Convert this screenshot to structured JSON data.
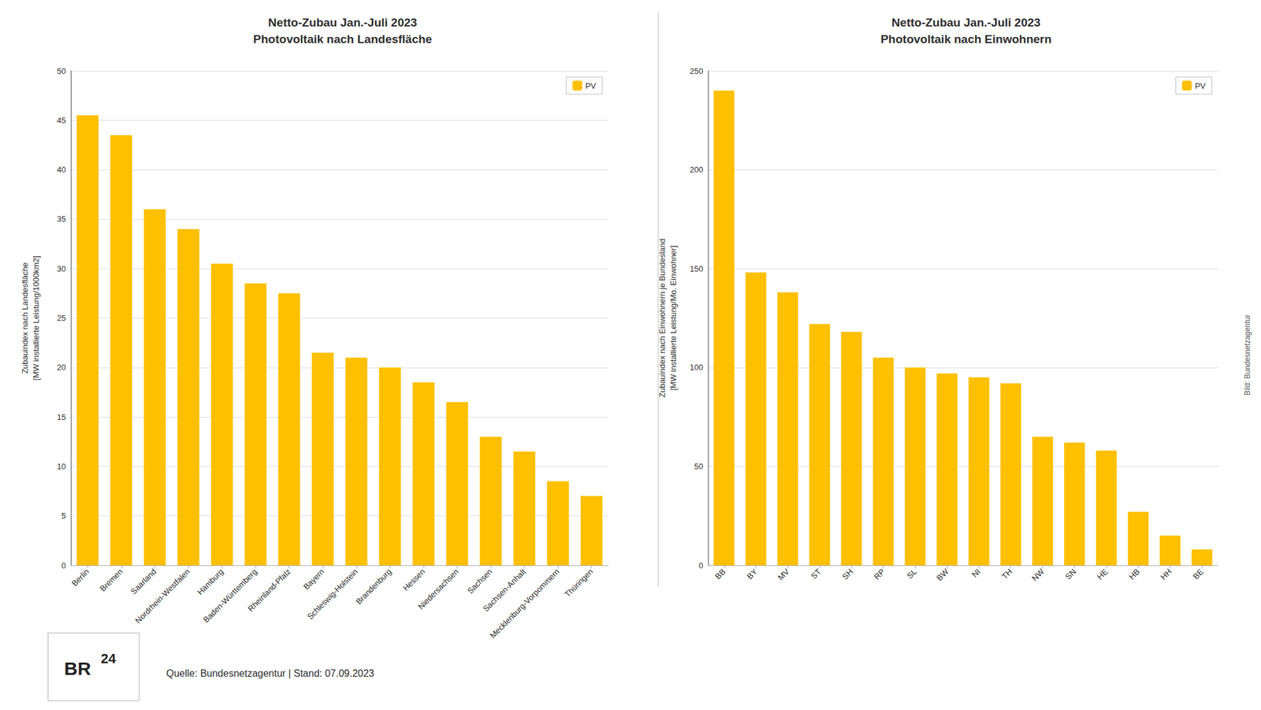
{
  "chart_data": [
    {
      "type": "bar",
      "title": "Netto-Zubau Jan.-Juli 2023\nPhotovoltaik nach Landesfläche",
      "ylabel": "Zubauindex nach Landesfläche\n[MW installierte Leistung/1000km2]",
      "categories": [
        "Berlin",
        "Bremen",
        "Saarland",
        "Nordrhein-Westfalen",
        "Hamburg",
        "Baden-Württemberg",
        "Rheinland-Pfalz",
        "Bayern",
        "Schleswig-Holstein",
        "Brandenburg",
        "Hessen",
        "Niedersachsen",
        "Sachsen",
        "Sachsen-Anhalt",
        "Mecklenburg-Vorpommern",
        "Thüringen"
      ],
      "series": [
        {
          "name": "PV",
          "color": "#FFC000",
          "values": [
            45.5,
            43.5,
            36.0,
            34.0,
            30.5,
            28.5,
            27.5,
            21.5,
            21.0,
            20.0,
            18.5,
            16.5,
            13.0,
            11.5,
            8.5,
            7.0
          ]
        }
      ],
      "ylim": [
        0,
        50
      ],
      "yticks": [
        0,
        5,
        10,
        15,
        20,
        25,
        30,
        35,
        40,
        45,
        50
      ],
      "grid": true,
      "legend": "upper right",
      "annotations": [
        "Quelle: Bundesnetzagentur | Stand: 07.09.2023",
        "Bild: Bundesnetzagentur",
        "BR",
        "24"
      ]
    },
    {
      "type": "bar",
      "title": "Netto-Zubau Jan.-Juli 2023\nPhotovoltaik nach Einwohnern",
      "ylabel": "Zubauindex nach Einwohnern je Bundesland\n[MW installierte Leistung/Mo. Einwohner]",
      "categories": [
        "BB",
        "BY",
        "MV",
        "ST",
        "SH",
        "RP",
        "SL",
        "BW",
        "NI",
        "TH",
        "NW",
        "SN",
        "HE",
        "HB",
        "HH",
        "BE"
      ],
      "series": [
        {
          "name": "PV",
          "color": "#FFC000",
          "values": [
            240,
            148,
            138,
            122,
            118,
            105,
            100,
            97,
            95,
            92,
            65,
            62,
            58,
            27,
            15,
            8
          ]
        }
      ],
      "ylim": [
        0,
        250
      ],
      "yticks": [
        0,
        50,
        100,
        150,
        200,
        250
      ],
      "grid": true,
      "legend": "upper right"
    }
  ]
}
